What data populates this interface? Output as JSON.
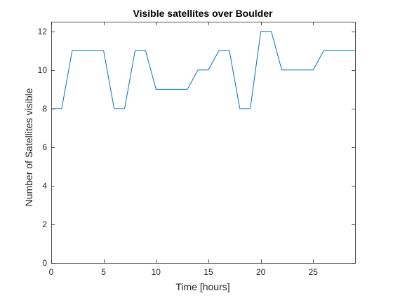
{
  "chart_data": {
    "type": "line",
    "title": "Visible satellites over Boulder",
    "xlabel": "Time [hours]",
    "ylabel": "Number of Satellites visible",
    "xlim": [
      0,
      29
    ],
    "ylim": [
      0,
      12.5
    ],
    "x_ticks": [
      0,
      5,
      10,
      15,
      20,
      25
    ],
    "x_tick_labels": [
      "0",
      "5",
      "10",
      "15",
      "20",
      "25"
    ],
    "y_ticks": [
      0,
      2,
      4,
      6,
      8,
      10,
      12
    ],
    "y_tick_labels": [
      "0",
      "2",
      "4",
      "6",
      "8",
      "10",
      "12"
    ],
    "grid": false,
    "box": true,
    "colors": {
      "line": "#0072BD",
      "axes": "#262626",
      "title": "#000000",
      "background": "#ffffff"
    },
    "series": [
      {
        "x": [
          0,
          1,
          2,
          3,
          4,
          5,
          6,
          7,
          8,
          9,
          10,
          11,
          12,
          13,
          14,
          15,
          16,
          17,
          18,
          19,
          20,
          21,
          22,
          23,
          24,
          25,
          26,
          27,
          28,
          29
        ],
        "y": [
          8,
          8,
          11,
          11,
          11,
          11,
          8,
          8,
          11,
          11,
          9,
          9,
          9,
          9,
          10,
          10,
          11,
          11,
          8,
          8,
          12,
          12,
          10,
          10,
          10,
          10,
          11,
          11,
          11,
          11
        ]
      }
    ]
  }
}
